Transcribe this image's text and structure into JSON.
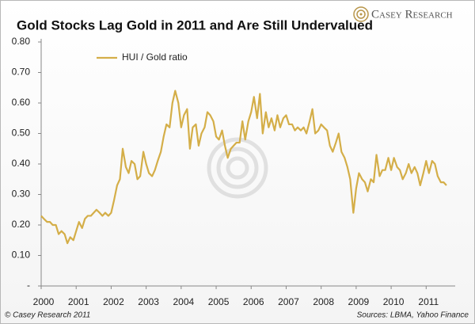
{
  "chart_data": {
    "type": "line",
    "title": "Gold Stocks Lag Gold in 2011 and Are Still Undervalued",
    "x": [
      2000.0,
      2000.08,
      2000.17,
      2000.25,
      2000.33,
      2000.42,
      2000.5,
      2000.58,
      2000.67,
      2000.75,
      2000.83,
      2000.92,
      2001.0,
      2001.08,
      2001.17,
      2001.25,
      2001.33,
      2001.42,
      2001.5,
      2001.58,
      2001.67,
      2001.75,
      2001.83,
      2001.92,
      2002.0,
      2002.08,
      2002.17,
      2002.25,
      2002.33,
      2002.42,
      2002.5,
      2002.58,
      2002.67,
      2002.75,
      2002.83,
      2002.92,
      2003.0,
      2003.08,
      2003.17,
      2003.25,
      2003.33,
      2003.42,
      2003.5,
      2003.58,
      2003.67,
      2003.75,
      2003.83,
      2003.92,
      2004.0,
      2004.08,
      2004.17,
      2004.25,
      2004.33,
      2004.42,
      2004.5,
      2004.58,
      2004.67,
      2004.75,
      2004.83,
      2004.92,
      2005.0,
      2005.08,
      2005.17,
      2005.25,
      2005.33,
      2005.42,
      2005.5,
      2005.58,
      2005.67,
      2005.75,
      2005.83,
      2005.92,
      2006.0,
      2006.08,
      2006.17,
      2006.25,
      2006.33,
      2006.42,
      2006.5,
      2006.58,
      2006.67,
      2006.75,
      2006.83,
      2006.92,
      2007.0,
      2007.08,
      2007.17,
      2007.25,
      2007.33,
      2007.42,
      2007.5,
      2007.58,
      2007.67,
      2007.75,
      2007.83,
      2007.92,
      2008.0,
      2008.08,
      2008.17,
      2008.25,
      2008.33,
      2008.42,
      2008.5,
      2008.58,
      2008.67,
      2008.75,
      2008.83,
      2008.92,
      2009.0,
      2009.08,
      2009.17,
      2009.25,
      2009.33,
      2009.42,
      2009.5,
      2009.58,
      2009.67,
      2009.75,
      2009.83,
      2009.92,
      2010.0,
      2010.08,
      2010.17,
      2010.25,
      2010.33,
      2010.42,
      2010.5,
      2010.58,
      2010.67,
      2010.75,
      2010.83,
      2010.92,
      2011.0,
      2011.08,
      2011.17,
      2011.25,
      2011.33,
      2011.42,
      2011.5,
      2011.58
    ],
    "series": [
      {
        "name": "HUI / Gold ratio",
        "color": "#d4ae48",
        "values": [
          0.23,
          0.22,
          0.21,
          0.21,
          0.2,
          0.2,
          0.17,
          0.18,
          0.17,
          0.14,
          0.16,
          0.15,
          0.18,
          0.21,
          0.19,
          0.22,
          0.23,
          0.23,
          0.24,
          0.25,
          0.24,
          0.23,
          0.24,
          0.23,
          0.24,
          0.28,
          0.33,
          0.35,
          0.45,
          0.39,
          0.37,
          0.41,
          0.4,
          0.35,
          0.36,
          0.44,
          0.4,
          0.37,
          0.36,
          0.38,
          0.41,
          0.44,
          0.49,
          0.53,
          0.52,
          0.6,
          0.64,
          0.6,
          0.52,
          0.56,
          0.58,
          0.45,
          0.52,
          0.53,
          0.46,
          0.5,
          0.52,
          0.57,
          0.56,
          0.54,
          0.49,
          0.48,
          0.51,
          0.46,
          0.42,
          0.45,
          0.46,
          0.47,
          0.47,
          0.54,
          0.48,
          0.54,
          0.57,
          0.62,
          0.55,
          0.63,
          0.5,
          0.57,
          0.52,
          0.55,
          0.51,
          0.56,
          0.52,
          0.55,
          0.56,
          0.53,
          0.53,
          0.51,
          0.52,
          0.51,
          0.52,
          0.5,
          0.54,
          0.58,
          0.5,
          0.51,
          0.53,
          0.52,
          0.51,
          0.46,
          0.44,
          0.47,
          0.5,
          0.44,
          0.42,
          0.39,
          0.35,
          0.24,
          0.32,
          0.37,
          0.35,
          0.34,
          0.31,
          0.35,
          0.34,
          0.43,
          0.36,
          0.38,
          0.38,
          0.42,
          0.38,
          0.42,
          0.39,
          0.38,
          0.35,
          0.37,
          0.4,
          0.37,
          0.39,
          0.37,
          0.33,
          0.37,
          0.41,
          0.37,
          0.41,
          0.4,
          0.36,
          0.34,
          0.34,
          0.33
        ]
      }
    ],
    "xlim": [
      2000,
      2011.83
    ],
    "xticks": [
      2000,
      2001,
      2002,
      2003,
      2004,
      2005,
      2006,
      2007,
      2008,
      2009,
      2010,
      2011
    ],
    "ylim": [
      0,
      0.8
    ],
    "yticks": [
      {
        "value": 0,
        "label": "-"
      },
      {
        "value": 0.1,
        "label": "0.10"
      },
      {
        "value": 0.2,
        "label": "0.20"
      },
      {
        "value": 0.3,
        "label": "0.30"
      },
      {
        "value": 0.4,
        "label": "0.40"
      },
      {
        "value": 0.5,
        "label": "0.50"
      },
      {
        "value": 0.6,
        "label": "0.60"
      },
      {
        "value": 0.7,
        "label": "0.70"
      },
      {
        "value": 0.8,
        "label": "0.80"
      }
    ],
    "grid": false,
    "legend": "upper-left"
  },
  "logo": "Casey Research",
  "copyright": "© Casey Research 2011",
  "source": "Sources: LBMA, Yahoo Finance"
}
